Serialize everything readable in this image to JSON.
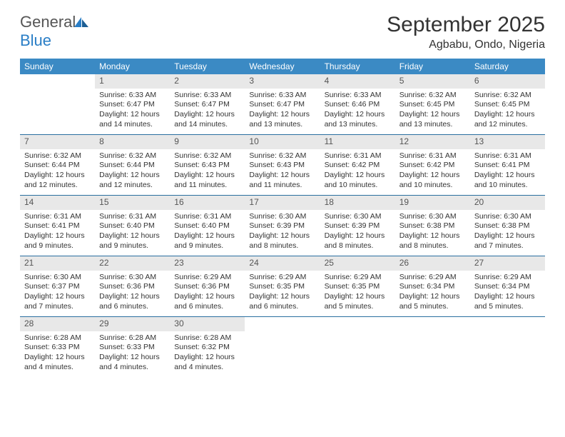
{
  "logo": {
    "text1": "General",
    "text2": "Blue"
  },
  "title": "September 2025",
  "location": "Agbabu, Ondo, Nigeria",
  "colors": {
    "header_bg": "#3b8ac4",
    "header_text": "#ffffff",
    "daynum_bg": "#e8e8e8",
    "divider": "#2a6fa0",
    "logo_blue": "#2a7ec6"
  },
  "day_headers": [
    "Sunday",
    "Monday",
    "Tuesday",
    "Wednesday",
    "Thursday",
    "Friday",
    "Saturday"
  ],
  "weeks": [
    [
      {
        "empty": true
      },
      {
        "num": "1",
        "sunrise": "Sunrise: 6:33 AM",
        "sunset": "Sunset: 6:47 PM",
        "daylight": "Daylight: 12 hours and 14 minutes."
      },
      {
        "num": "2",
        "sunrise": "Sunrise: 6:33 AM",
        "sunset": "Sunset: 6:47 PM",
        "daylight": "Daylight: 12 hours and 14 minutes."
      },
      {
        "num": "3",
        "sunrise": "Sunrise: 6:33 AM",
        "sunset": "Sunset: 6:47 PM",
        "daylight": "Daylight: 12 hours and 13 minutes."
      },
      {
        "num": "4",
        "sunrise": "Sunrise: 6:33 AM",
        "sunset": "Sunset: 6:46 PM",
        "daylight": "Daylight: 12 hours and 13 minutes."
      },
      {
        "num": "5",
        "sunrise": "Sunrise: 6:32 AM",
        "sunset": "Sunset: 6:45 PM",
        "daylight": "Daylight: 12 hours and 13 minutes."
      },
      {
        "num": "6",
        "sunrise": "Sunrise: 6:32 AM",
        "sunset": "Sunset: 6:45 PM",
        "daylight": "Daylight: 12 hours and 12 minutes."
      }
    ],
    [
      {
        "num": "7",
        "sunrise": "Sunrise: 6:32 AM",
        "sunset": "Sunset: 6:44 PM",
        "daylight": "Daylight: 12 hours and 12 minutes."
      },
      {
        "num": "8",
        "sunrise": "Sunrise: 6:32 AM",
        "sunset": "Sunset: 6:44 PM",
        "daylight": "Daylight: 12 hours and 12 minutes."
      },
      {
        "num": "9",
        "sunrise": "Sunrise: 6:32 AM",
        "sunset": "Sunset: 6:43 PM",
        "daylight": "Daylight: 12 hours and 11 minutes."
      },
      {
        "num": "10",
        "sunrise": "Sunrise: 6:32 AM",
        "sunset": "Sunset: 6:43 PM",
        "daylight": "Daylight: 12 hours and 11 minutes."
      },
      {
        "num": "11",
        "sunrise": "Sunrise: 6:31 AM",
        "sunset": "Sunset: 6:42 PM",
        "daylight": "Daylight: 12 hours and 10 minutes."
      },
      {
        "num": "12",
        "sunrise": "Sunrise: 6:31 AM",
        "sunset": "Sunset: 6:42 PM",
        "daylight": "Daylight: 12 hours and 10 minutes."
      },
      {
        "num": "13",
        "sunrise": "Sunrise: 6:31 AM",
        "sunset": "Sunset: 6:41 PM",
        "daylight": "Daylight: 12 hours and 10 minutes."
      }
    ],
    [
      {
        "num": "14",
        "sunrise": "Sunrise: 6:31 AM",
        "sunset": "Sunset: 6:41 PM",
        "daylight": "Daylight: 12 hours and 9 minutes."
      },
      {
        "num": "15",
        "sunrise": "Sunrise: 6:31 AM",
        "sunset": "Sunset: 6:40 PM",
        "daylight": "Daylight: 12 hours and 9 minutes."
      },
      {
        "num": "16",
        "sunrise": "Sunrise: 6:31 AM",
        "sunset": "Sunset: 6:40 PM",
        "daylight": "Daylight: 12 hours and 9 minutes."
      },
      {
        "num": "17",
        "sunrise": "Sunrise: 6:30 AM",
        "sunset": "Sunset: 6:39 PM",
        "daylight": "Daylight: 12 hours and 8 minutes."
      },
      {
        "num": "18",
        "sunrise": "Sunrise: 6:30 AM",
        "sunset": "Sunset: 6:39 PM",
        "daylight": "Daylight: 12 hours and 8 minutes."
      },
      {
        "num": "19",
        "sunrise": "Sunrise: 6:30 AM",
        "sunset": "Sunset: 6:38 PM",
        "daylight": "Daylight: 12 hours and 8 minutes."
      },
      {
        "num": "20",
        "sunrise": "Sunrise: 6:30 AM",
        "sunset": "Sunset: 6:38 PM",
        "daylight": "Daylight: 12 hours and 7 minutes."
      }
    ],
    [
      {
        "num": "21",
        "sunrise": "Sunrise: 6:30 AM",
        "sunset": "Sunset: 6:37 PM",
        "daylight": "Daylight: 12 hours and 7 minutes."
      },
      {
        "num": "22",
        "sunrise": "Sunrise: 6:30 AM",
        "sunset": "Sunset: 6:36 PM",
        "daylight": "Daylight: 12 hours and 6 minutes."
      },
      {
        "num": "23",
        "sunrise": "Sunrise: 6:29 AM",
        "sunset": "Sunset: 6:36 PM",
        "daylight": "Daylight: 12 hours and 6 minutes."
      },
      {
        "num": "24",
        "sunrise": "Sunrise: 6:29 AM",
        "sunset": "Sunset: 6:35 PM",
        "daylight": "Daylight: 12 hours and 6 minutes."
      },
      {
        "num": "25",
        "sunrise": "Sunrise: 6:29 AM",
        "sunset": "Sunset: 6:35 PM",
        "daylight": "Daylight: 12 hours and 5 minutes."
      },
      {
        "num": "26",
        "sunrise": "Sunrise: 6:29 AM",
        "sunset": "Sunset: 6:34 PM",
        "daylight": "Daylight: 12 hours and 5 minutes."
      },
      {
        "num": "27",
        "sunrise": "Sunrise: 6:29 AM",
        "sunset": "Sunset: 6:34 PM",
        "daylight": "Daylight: 12 hours and 5 minutes."
      }
    ],
    [
      {
        "num": "28",
        "sunrise": "Sunrise: 6:28 AM",
        "sunset": "Sunset: 6:33 PM",
        "daylight": "Daylight: 12 hours and 4 minutes."
      },
      {
        "num": "29",
        "sunrise": "Sunrise: 6:28 AM",
        "sunset": "Sunset: 6:33 PM",
        "daylight": "Daylight: 12 hours and 4 minutes."
      },
      {
        "num": "30",
        "sunrise": "Sunrise: 6:28 AM",
        "sunset": "Sunset: 6:32 PM",
        "daylight": "Daylight: 12 hours and 4 minutes."
      },
      {
        "empty": true
      },
      {
        "empty": true
      },
      {
        "empty": true
      },
      {
        "empty": true
      }
    ]
  ]
}
